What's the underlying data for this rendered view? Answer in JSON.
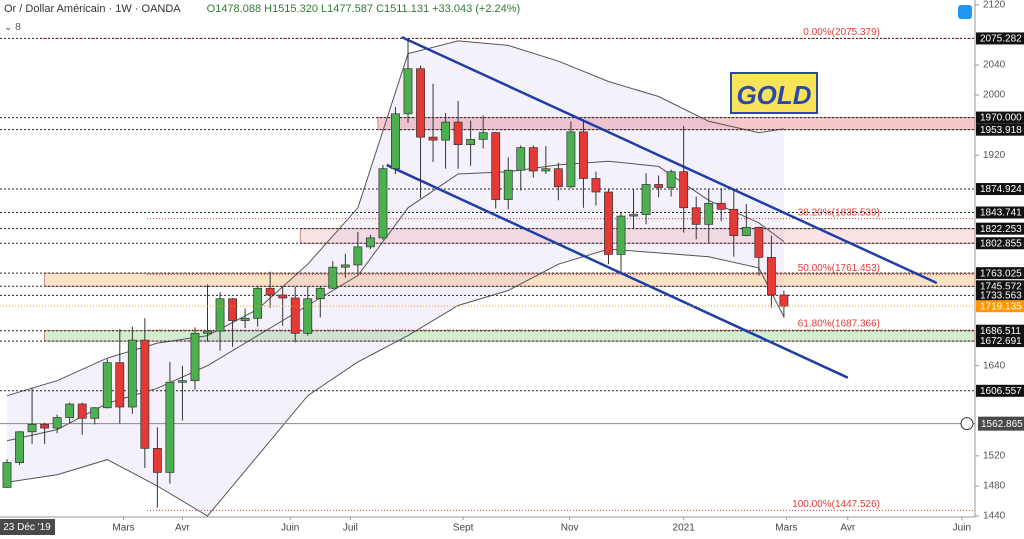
{
  "chart_data": {
    "type": "candlestick",
    "title": "Or / Dollar Américain · 1W · OANDA",
    "ohlc": "O1478.088 H1515.320 L1477.587 C1511.131 +33.043 (+2.24%)",
    "indicator_count": "8",
    "annotation": "GOLD",
    "up_color": "#4caf50",
    "down_color": "#e53935",
    "xlim": [
      -0.56,
      77.25
    ],
    "ylim": [
      1438.7,
      2126.4
    ],
    "xticks": [
      {
        "value": 9.3,
        "label": "Mars"
      },
      {
        "value": 14,
        "label": "Avr"
      },
      {
        "value": 22.6,
        "label": "Juin"
      },
      {
        "value": 27.4,
        "label": "Juil"
      },
      {
        "value": 36.4,
        "label": "Sept"
      },
      {
        "value": 44.9,
        "label": "Nov"
      },
      {
        "value": 54,
        "label": "2021"
      },
      {
        "value": 62.2,
        "label": "Mars"
      },
      {
        "value": 67.1,
        "label": "Avr"
      },
      {
        "value": 76.2,
        "label": "Juin"
      }
    ],
    "yticks": [
      2120,
      2040,
      2000,
      1920,
      1640,
      1520,
      1480,
      1440
    ],
    "candles": [
      [
        1478.088,
        1515.32,
        1477.587,
        1511.131
      ],
      [
        1511,
        1553,
        1508,
        1552
      ],
      [
        1552,
        1611,
        1536,
        1562
      ],
      [
        1562,
        1564,
        1536,
        1557
      ],
      [
        1557,
        1575,
        1550,
        1571
      ],
      [
        1571,
        1591,
        1563,
        1589
      ],
      [
        1589,
        1591,
        1548,
        1570
      ],
      [
        1570,
        1585,
        1562,
        1584
      ],
      [
        1584,
        1649,
        1583,
        1644
      ],
      [
        1644,
        1689,
        1563,
        1585
      ],
      [
        1585,
        1692,
        1576,
        1674
      ],
      [
        1674,
        1703,
        1504,
        1530
      ],
      [
        1530,
        1558,
        1451,
        1498
      ],
      [
        1498,
        1645,
        1483,
        1618
      ],
      [
        1618,
        1640,
        1567,
        1620
      ],
      [
        1620,
        1691,
        1608,
        1683
      ],
      [
        1683,
        1748,
        1672,
        1686
      ],
      [
        1686,
        1738,
        1660,
        1729
      ],
      [
        1729,
        1730,
        1665,
        1700
      ],
      [
        1700,
        1716,
        1690,
        1703
      ],
      [
        1703,
        1746,
        1692,
        1743
      ],
      [
        1743,
        1765,
        1717,
        1734
      ],
      [
        1734,
        1745,
        1693,
        1730
      ],
      [
        1730,
        1745,
        1671,
        1683
      ],
      [
        1683,
        1745,
        1680,
        1729
      ],
      [
        1729,
        1745,
        1704,
        1743
      ],
      [
        1743,
        1779,
        1742,
        1771
      ],
      [
        1771,
        1789,
        1757,
        1774
      ],
      [
        1774,
        1818,
        1763,
        1798
      ],
      [
        1798,
        1814,
        1795,
        1810
      ],
      [
        1810,
        1907,
        1807,
        1902
      ],
      [
        1902,
        1984,
        1895,
        1975
      ],
      [
        1975,
        2075,
        1963,
        2035
      ],
      [
        2035,
        2039,
        1863,
        1944
      ],
      [
        1944,
        2015,
        1911,
        1940
      ],
      [
        1940,
        1976,
        1902,
        1964
      ],
      [
        1964,
        1992,
        1902,
        1934
      ],
      [
        1934,
        1966,
        1906,
        1941
      ],
      [
        1941,
        1973,
        1929,
        1950
      ],
      [
        1950,
        1951,
        1849,
        1861
      ],
      [
        1861,
        1917,
        1848,
        1900
      ],
      [
        1900,
        1933,
        1873,
        1930
      ],
      [
        1930,
        1933,
        1890,
        1899
      ],
      [
        1899,
        1932,
        1895,
        1902
      ],
      [
        1902,
        1910,
        1860,
        1878
      ],
      [
        1878,
        1965,
        1876,
        1951
      ],
      [
        1951,
        1966,
        1850,
        1889
      ],
      [
        1889,
        1898,
        1853,
        1871
      ],
      [
        1871,
        1875,
        1775,
        1788
      ],
      [
        1788,
        1843,
        1764,
        1839
      ],
      [
        1839,
        1875,
        1823,
        1841
      ],
      [
        1841,
        1896,
        1828,
        1881
      ],
      [
        1881,
        1893,
        1864,
        1877
      ],
      [
        1877,
        1901,
        1865,
        1898
      ],
      [
        1898,
        1959,
        1817,
        1850
      ],
      [
        1850,
        1865,
        1808,
        1828
      ],
      [
        1828,
        1874,
        1803,
        1856
      ],
      [
        1856,
        1876,
        1832,
        1848
      ],
      [
        1848,
        1875,
        1785,
        1813
      ],
      [
        1813,
        1855,
        1812,
        1824
      ],
      [
        1824,
        1825,
        1760,
        1784
      ],
      [
        1784,
        1813,
        1717,
        1734
      ],
      [
        1734,
        1740,
        1704,
        1719.135
      ]
    ],
    "bands": {
      "x": [
        0,
        4,
        8,
        12,
        16,
        20,
        24,
        28,
        32,
        36,
        40,
        44,
        48,
        52,
        56,
        60,
        62
      ],
      "upper": [
        1600,
        1620,
        1650,
        1670,
        1680,
        1715,
        1775,
        1850,
        2055,
        2072,
        2066,
        2045,
        2018,
        1998,
        1965,
        1950,
        1955
      ],
      "middle": [
        1540,
        1555,
        1590,
        1610,
        1640,
        1680,
        1720,
        1760,
        1850,
        1895,
        1898,
        1907,
        1912,
        1905,
        1860,
        1830,
        1805
      ],
      "lower": [
        1485,
        1495,
        1515,
        1480,
        1440,
        1520,
        1600,
        1645,
        1680,
        1720,
        1740,
        1775,
        1795,
        1790,
        1785,
        1770,
        1705
      ]
    },
    "trendlines": [
      {
        "x": [
          31.5,
          74.2
        ],
        "y": [
          2077,
          1750
        ]
      },
      {
        "x": [
          30.3,
          67.1
        ],
        "y": [
          1907,
          1624
        ]
      }
    ],
    "zones": [
      {
        "low": 1953.918,
        "high": 1970,
        "start": 29.6,
        "color": "#f5c9cb"
      },
      {
        "low": 1802.855,
        "high": 1822.253,
        "start": 23.4,
        "color": "#fbe3e3"
      },
      {
        "low": 1745.572,
        "high": 1763.025,
        "start": 3,
        "color": "#fde2c6"
      },
      {
        "low": 1672.691,
        "high": 1686.511,
        "start": 3,
        "color": "#d3edcf"
      }
    ],
    "fibs": [
      {
        "value": 2075.379,
        "label": "0.00%(2075.379)"
      },
      {
        "value": 1835.539,
        "label": "38.20%(1835.539)"
      },
      {
        "value": 1761.453,
        "label": "50.00%(1761.453)"
      },
      {
        "value": 1687.366,
        "label": "61.80%(1687.366)"
      },
      {
        "value": 1447.526,
        "label": "100.00%(1447.526)"
      }
    ],
    "levels": [
      {
        "value": 2075.282,
        "label": "2075.282"
      },
      {
        "value": 1970,
        "label": "1970.000"
      },
      {
        "value": 1953.918,
        "label": "1953.918"
      },
      {
        "value": 1874.924,
        "label": "1874.924"
      },
      {
        "value": 1843.741,
        "label": "1843.741"
      },
      {
        "value": 1822.253,
        "label": "1822.253"
      },
      {
        "value": 1802.855,
        "label": "1802.855"
      },
      {
        "value": 1763.025,
        "label": "1763.025"
      },
      {
        "value": 1745.572,
        "label": "1745.572"
      },
      {
        "value": 1733.563,
        "label": "1733.563"
      },
      {
        "value": 1686.511,
        "label": "1686.511"
      },
      {
        "value": 1672.691,
        "label": "1672.691"
      },
      {
        "value": 1606.557,
        "label": "1606.557"
      }
    ],
    "current_price": {
      "value": 1719.135,
      "label": "1719.135",
      "color": "#ff9800"
    },
    "crosshair": {
      "x": 0,
      "x_label": "23 Déc '19",
      "y": 1562.865,
      "y_label": "1562.865"
    }
  }
}
